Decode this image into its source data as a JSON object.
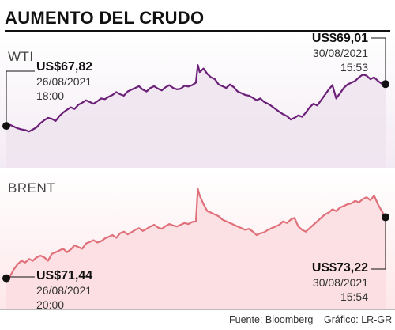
{
  "title": "AUMENTO DEL CRUDO",
  "footer": {
    "source": "Fuente: Bloomberg",
    "graphic": "Gráfico: LR-GR"
  },
  "colors": {
    "wti": "#6b1f78",
    "wti_fill": "#efe4ef",
    "brent": "#e07079",
    "brent_fill": "#fbdde1"
  },
  "chart_data": [
    {
      "type": "area",
      "series_name": "WTI",
      "unit": "US$",
      "ylim": [
        66.9,
        69.6
      ],
      "start": {
        "value": "US$67,82",
        "date": "26/08/2021",
        "time": "18:00"
      },
      "end": {
        "value": "US$69,01",
        "date": "30/08/2021",
        "time": "15:53"
      },
      "x": [
        0.0,
        0.01,
        0.02,
        0.03,
        0.04,
        0.05,
        0.06,
        0.07,
        0.08,
        0.09,
        0.1,
        0.11,
        0.12,
        0.13,
        0.14,
        0.15,
        0.16,
        0.17,
        0.18,
        0.19,
        0.2,
        0.21,
        0.22,
        0.23,
        0.24,
        0.25,
        0.26,
        0.27,
        0.28,
        0.29,
        0.3,
        0.31,
        0.32,
        0.33,
        0.34,
        0.35,
        0.36,
        0.37,
        0.38,
        0.39,
        0.4,
        0.41,
        0.42,
        0.43,
        0.44,
        0.45,
        0.46,
        0.47,
        0.48,
        0.49,
        0.5,
        0.505,
        0.51,
        0.52,
        0.53,
        0.54,
        0.55,
        0.56,
        0.57,
        0.58,
        0.59,
        0.6,
        0.61,
        0.62,
        0.63,
        0.64,
        0.65,
        0.66,
        0.67,
        0.68,
        0.69,
        0.7,
        0.71,
        0.72,
        0.73,
        0.74,
        0.75,
        0.76,
        0.77,
        0.78,
        0.79,
        0.8,
        0.81,
        0.82,
        0.83,
        0.84,
        0.85,
        0.86,
        0.87,
        0.88,
        0.89,
        0.9,
        0.91,
        0.92,
        0.93,
        0.94,
        0.95,
        0.96,
        0.97,
        0.98,
        0.99,
        1.0
      ],
      "values": [
        67.82,
        67.85,
        67.8,
        67.75,
        67.72,
        67.7,
        67.66,
        67.72,
        67.78,
        67.9,
        67.98,
        68.05,
        68.02,
        67.96,
        68.1,
        68.2,
        68.28,
        68.35,
        68.3,
        68.42,
        68.48,
        68.55,
        68.5,
        68.45,
        68.52,
        68.6,
        68.58,
        68.65,
        68.7,
        68.78,
        68.72,
        68.68,
        68.8,
        68.85,
        68.9,
        68.95,
        68.85,
        68.8,
        68.9,
        68.95,
        68.88,
        68.83,
        68.92,
        68.98,
        68.9,
        68.86,
        68.88,
        68.96,
        68.94,
        68.98,
        69.05,
        69.55,
        69.35,
        69.45,
        69.3,
        69.2,
        69.15,
        69.0,
        68.95,
        68.9,
        69.0,
        68.92,
        68.8,
        68.75,
        68.7,
        68.68,
        68.62,
        68.55,
        68.6,
        68.5,
        68.45,
        68.38,
        68.3,
        68.22,
        68.15,
        68.1,
        68.0,
        68.05,
        68.12,
        68.08,
        68.2,
        68.35,
        68.45,
        68.4,
        68.55,
        68.7,
        68.85,
        68.98,
        68.6,
        68.75,
        68.9,
        69.0,
        69.05,
        69.1,
        69.2,
        69.28,
        69.25,
        69.15,
        69.2,
        69.1,
        69.02,
        69.01
      ]
    },
    {
      "type": "area",
      "series_name": "BRENT",
      "unit": "US$",
      "ylim": [
        71.2,
        74.2
      ],
      "start": {
        "value": "US$71,44",
        "date": "26/08/2021",
        "time": "20:00"
      },
      "end": {
        "value": "US$73,22",
        "date": "30/08/2021",
        "time": "15:54"
      },
      "x": [
        0.0,
        0.01,
        0.02,
        0.03,
        0.04,
        0.05,
        0.06,
        0.07,
        0.08,
        0.09,
        0.1,
        0.11,
        0.12,
        0.13,
        0.14,
        0.15,
        0.16,
        0.17,
        0.18,
        0.19,
        0.2,
        0.21,
        0.22,
        0.23,
        0.24,
        0.25,
        0.26,
        0.27,
        0.28,
        0.29,
        0.3,
        0.31,
        0.32,
        0.33,
        0.34,
        0.35,
        0.36,
        0.37,
        0.38,
        0.39,
        0.4,
        0.41,
        0.42,
        0.43,
        0.44,
        0.45,
        0.46,
        0.47,
        0.48,
        0.49,
        0.5,
        0.505,
        0.51,
        0.52,
        0.53,
        0.54,
        0.55,
        0.56,
        0.57,
        0.58,
        0.59,
        0.6,
        0.61,
        0.62,
        0.63,
        0.64,
        0.65,
        0.66,
        0.67,
        0.68,
        0.69,
        0.7,
        0.71,
        0.72,
        0.73,
        0.74,
        0.75,
        0.76,
        0.77,
        0.78,
        0.79,
        0.8,
        0.81,
        0.82,
        0.83,
        0.84,
        0.85,
        0.86,
        0.87,
        0.88,
        0.89,
        0.9,
        0.91,
        0.92,
        0.93,
        0.94,
        0.95,
        0.96,
        0.97,
        0.98,
        0.99,
        1.0
      ],
      "values": [
        71.44,
        71.5,
        71.7,
        71.85,
        71.95,
        71.9,
        72.0,
        71.95,
        72.05,
        72.1,
        72.05,
        71.95,
        72.15,
        72.2,
        72.25,
        72.3,
        72.2,
        72.28,
        72.4,
        72.35,
        72.3,
        72.45,
        72.5,
        72.55,
        72.48,
        72.52,
        72.6,
        72.65,
        72.7,
        72.62,
        72.75,
        72.8,
        72.72,
        72.78,
        72.85,
        72.9,
        72.82,
        72.88,
        72.95,
        73.0,
        72.92,
        72.88,
        72.96,
        73.02,
        72.98,
        72.95,
        73.0,
        73.05,
        73.02,
        73.08,
        73.1,
        74.05,
        73.85,
        73.6,
        73.4,
        73.35,
        73.3,
        73.25,
        73.15,
        73.1,
        73.05,
        73.0,
        72.95,
        72.9,
        72.85,
        72.88,
        72.8,
        72.7,
        72.75,
        72.78,
        72.85,
        72.9,
        72.95,
        73.0,
        73.1,
        73.05,
        73.15,
        73.2,
        72.95,
        72.85,
        72.8,
        72.9,
        73.0,
        73.1,
        73.2,
        73.3,
        73.35,
        73.45,
        73.4,
        73.5,
        73.55,
        73.6,
        73.62,
        73.7,
        73.65,
        73.75,
        73.8,
        73.72,
        73.85,
        73.6,
        73.4,
        73.22
      ]
    }
  ]
}
